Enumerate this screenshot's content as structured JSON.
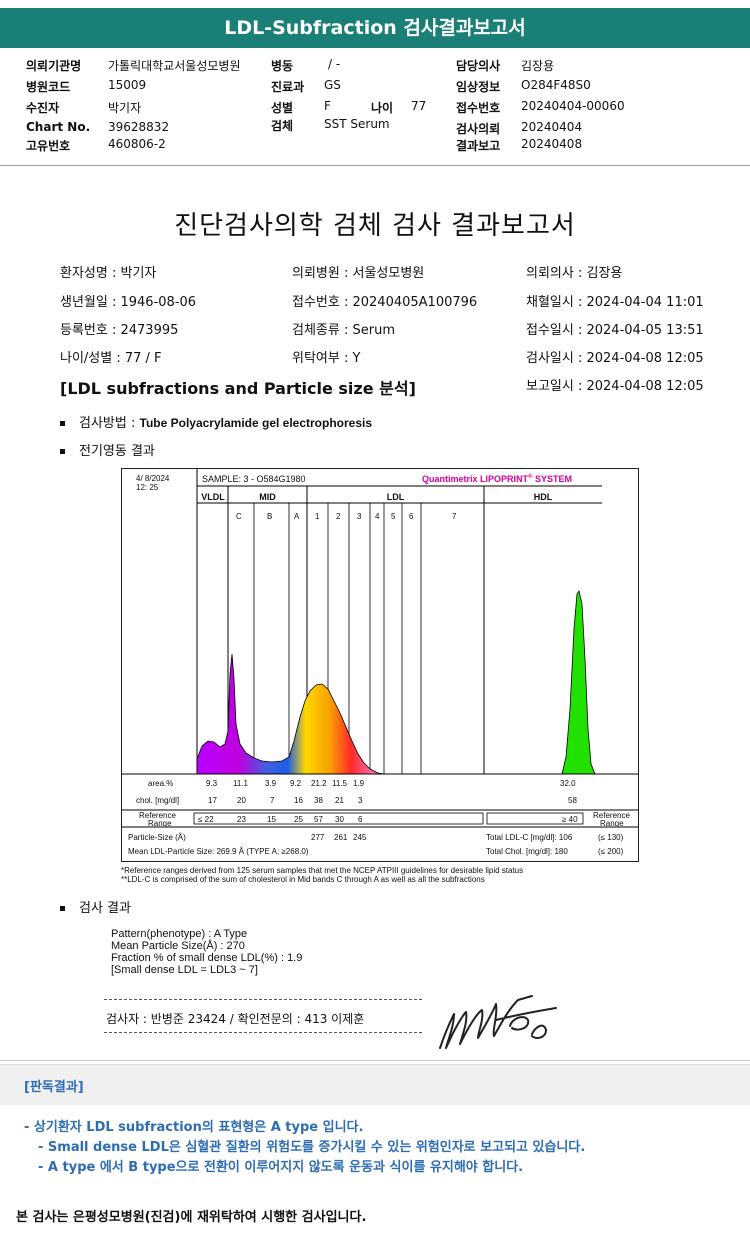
{
  "banner_title": "LDL-Subfraction 검사결과보고서",
  "header": {
    "col1": [
      {
        "k": "의뢰기관명",
        "v": "가톨릭대학교서울성모병원"
      },
      {
        "k": "병원코드",
        "v": "15009"
      },
      {
        "k": "수진자",
        "v": "박기자"
      },
      {
        "k": "Chart No.",
        "v": "39628832"
      },
      {
        "k": "고유번호",
        "v": "460806-2"
      }
    ],
    "col2": [
      {
        "k": "병동",
        "v": "/ -"
      },
      {
        "k": "진료과",
        "v": "GS"
      },
      {
        "k": "성별",
        "v": "F"
      },
      {
        "k": "검체",
        "v": "SST Serum"
      }
    ],
    "age_label": "나이",
    "age_value": "77",
    "col3": [
      {
        "k": "담당의사",
        "v": "김장용"
      },
      {
        "k": "임상정보",
        "v": "O284F48S0"
      },
      {
        "k": "접수번호",
        "v": "20240404-00060"
      },
      {
        "k": "검사의뢰",
        "v": "20240404"
      },
      {
        "k": "결과보고",
        "v": "20240408"
      }
    ]
  },
  "report_title": "진단검사의학 검체 검사 결과보고서",
  "patient": [
    [
      "환자성명 : 박기자",
      "의뢰병원 : 서울성모병원",
      "의뢰의사 : 김장용"
    ],
    [
      "생년월일 : 1946-08-06",
      "접수번호 : 20240405A100796",
      "채혈일시 : 2024-04-04 11:01"
    ],
    [
      "등록번호 : 2473995",
      "검체종류 : Serum",
      "접수일시 : 2024-04-05 13:51"
    ],
    [
      "나이/성별 : 77 / F",
      "위탁여부 : Y",
      "검사일시 : 2024-04-08 12:05"
    ]
  ],
  "report_time": "보고일시 : 2024-04-08 12:05",
  "section_heading": "[LDL subfractions and Particle size 분석]",
  "method_label": "검사방법 : ",
  "method_value": "Tube Polyacrylamide gel electrophoresis",
  "electro_label": "전기영동 결과",
  "chart": {
    "date": "4/  8/2024",
    "time": "12: 25",
    "sample": "SAMPLE:   3 - O584G1980",
    "brand": "Quantimetrix LIPOPRINT",
    "brand_reg": "®",
    "brand_sys": " SYSTEM",
    "groups": [
      "VLDL",
      "MID",
      "LDL",
      "HDL"
    ],
    "bands": [
      "C",
      "B",
      "A",
      "1",
      "2",
      "3",
      "4",
      "5",
      "6",
      "7"
    ],
    "row_area_label": "area.%",
    "area": [
      "9.3",
      "11.1",
      "3.9",
      "9.2",
      "21.2",
      "11.5",
      "1.9",
      "32.0"
    ],
    "row_chol_label": "chol. [mg/dl]",
    "chol": [
      "17",
      "20",
      "7",
      "16",
      "38",
      "21",
      "3",
      "58"
    ],
    "ref_label1": "Reference",
    "ref_label2": "Range",
    "ref_values": [
      "≤ 22",
      "23",
      "15",
      "25",
      "57",
      "30",
      "6"
    ],
    "ref_hdl": "≥ 40",
    "ref_right1": "Reference",
    "ref_right2": "Range",
    "ps_label": "Particle-Size (Å)",
    "ps_values": [
      "277",
      "261",
      "245"
    ],
    "mean_ps": "Mean LDL-Particle Size:   269.9 Å   (TYPE A; ≥268.0)",
    "total_ldl": "Total LDL-C [mg/dl]:  106",
    "total_ldl_ref": "(≤ 130)",
    "total_chol": "Total Chol. [mg/dl]:   180",
    "total_chol_ref": "(≤ 200)",
    "note1": "*Reference ranges derived from 125 serum samples that met the NCEP ATPIII guidelines for desirable lipid status",
    "note2": "**LDL-C is comprised of the sum of cholesterol in Mid bands C through A as well as all the subfractions"
  },
  "result_label": "검사 결과",
  "result_lines": [
    "Pattern(phenotype) : A Type",
    "Mean Particle Size(Å) : 270",
    "Fraction % of small dense LDL(%) : 1.9",
    "[Small dense LDL = LDL3 ~ 7]"
  ],
  "inspector": "검사자 : 반병준  23424  /  확인전문의 : 413  이제훈",
  "read_title": "[판독결과]",
  "read_lines": [
    "- 상기환자 LDL subfraction의 표현형은 A type 입니다.",
    "-   Small dense LDL은 심혈관 질환의 위험도를 증가시킬 수 있는 위험인자로 보고되고 있습니다.",
    "-   A type 에서 B type으로 전환이 이루어지지 않도록 운동과 식이를 유지해야 합니다."
  ],
  "footer": "본 검사는 은평성모병원(진검)에 재위탁하여 시행한 검사입니다.",
  "colors": {
    "banner": "#1a7f77",
    "read_text": "#2e6db4",
    "brand": "#d4009b"
  }
}
